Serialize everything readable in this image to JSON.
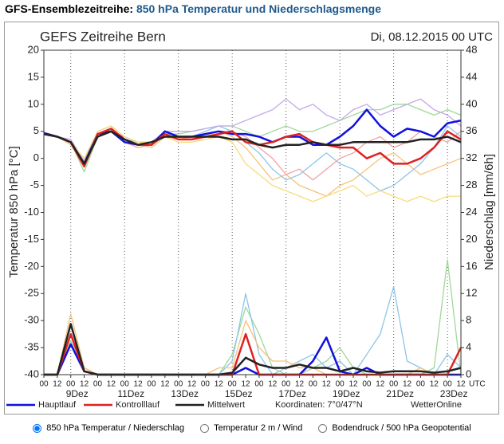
{
  "header": {
    "title": "GFS-Ensemblezeitreihe:",
    "subtitle": "850 hPa Temperatur und Niederschlagsmenge"
  },
  "chart_data": {
    "type": "line",
    "title": "GEFS Zeitreihe Bern",
    "date": "Di, 08.12.2015 00 UTC",
    "y_label": "Temperatur 850 hPa [°C]",
    "y2_label": "Niederschlag [mm/6h]",
    "coordinates": "Koordinaten: 7°0/47°N",
    "source": "WetterOnline",
    "x_unit": "UTC",
    "ylim": [
      -40,
      20
    ],
    "yticks": [
      20,
      15,
      10,
      5,
      0,
      -5,
      -10,
      -15,
      -20,
      -25,
      -30,
      -35,
      -40
    ],
    "y2lim": [
      0,
      48
    ],
    "y2ticks": [
      0,
      4,
      8,
      12,
      16,
      20,
      24,
      28,
      32,
      36,
      40,
      44,
      48
    ],
    "xlim": [
      0,
      372
    ],
    "xticks": [
      {
        "value": 0,
        "label": "00"
      },
      {
        "value": 12,
        "label": "12"
      },
      {
        "value": 24,
        "label": "00"
      },
      {
        "value": 36,
        "label": "12"
      },
      {
        "value": 48,
        "label": "00"
      },
      {
        "value": 60,
        "label": "12"
      },
      {
        "value": 72,
        "label": "00"
      },
      {
        "value": 84,
        "label": "12"
      },
      {
        "value": 96,
        "label": "00"
      },
      {
        "value": 108,
        "label": "12"
      },
      {
        "value": 120,
        "label": "00"
      },
      {
        "value": 132,
        "label": "12"
      },
      {
        "value": 144,
        "label": "00"
      },
      {
        "value": 156,
        "label": "12"
      },
      {
        "value": 168,
        "label": "00"
      },
      {
        "value": 180,
        "label": "12"
      },
      {
        "value": 192,
        "label": "00"
      },
      {
        "value": 204,
        "label": "12"
      },
      {
        "value": 216,
        "label": "00"
      },
      {
        "value": 228,
        "label": "12"
      },
      {
        "value": 240,
        "label": "00"
      },
      {
        "value": 252,
        "label": "12"
      },
      {
        "value": 264,
        "label": "00"
      },
      {
        "value": 276,
        "label": "12"
      },
      {
        "value": 288,
        "label": "00"
      },
      {
        "value": 300,
        "label": "12"
      },
      {
        "value": 312,
        "label": "00"
      },
      {
        "value": 324,
        "label": "12"
      },
      {
        "value": 336,
        "label": "00"
      },
      {
        "value": 348,
        "label": "12"
      },
      {
        "value": 360,
        "label": "00"
      },
      {
        "value": 372,
        "label": "12"
      }
    ],
    "date_ticks": [
      {
        "value": 24,
        "label": "9Dez"
      },
      {
        "value": 72,
        "label": "11Dez"
      },
      {
        "value": 120,
        "label": "13Dez"
      },
      {
        "value": 168,
        "label": "15Dez"
      },
      {
        "value": 216,
        "label": "17Dez"
      },
      {
        "value": 264,
        "label": "19Dez"
      },
      {
        "value": 312,
        "label": "21Dez"
      },
      {
        "value": 360,
        "label": "23Dez"
      }
    ],
    "grid": true,
    "x": [
      0,
      12,
      24,
      36,
      48,
      60,
      72,
      84,
      96,
      108,
      120,
      132,
      144,
      156,
      168,
      180,
      192,
      204,
      216,
      228,
      240,
      252,
      264,
      276,
      288,
      300,
      312,
      324,
      336,
      348,
      360,
      372
    ],
    "series": [
      {
        "color": "#f6c27a",
        "values": [
          4.5,
          4,
          2.5,
          -1.5,
          4,
          5,
          3,
          2.5,
          2,
          4,
          3.5,
          4,
          4.5,
          5,
          4,
          2,
          -1,
          -4,
          -3,
          -5,
          -6,
          -7,
          -5,
          -4,
          -2,
          0,
          1,
          -1,
          -3,
          -2,
          -1,
          0
        ]
      },
      {
        "color": "#9fd89a",
        "values": [
          4.5,
          4,
          3,
          -2.5,
          4,
          5.5,
          3.5,
          3,
          2.5,
          4.5,
          4.5,
          5,
          5.5,
          6,
          6,
          5,
          4,
          5,
          6,
          5,
          5,
          6,
          7,
          8,
          9,
          9,
          10,
          10,
          9,
          8,
          9,
          8
        ]
      },
      {
        "color": "#8ec5e8",
        "values": [
          4.5,
          4,
          3,
          -1,
          4.5,
          5,
          4,
          3,
          3,
          5,
          4,
          4,
          5,
          6,
          5,
          3,
          1,
          -2,
          -4,
          -3,
          -1,
          1,
          -1,
          -2,
          -4,
          -6,
          -5,
          -3,
          -1,
          2,
          6,
          4
        ]
      },
      {
        "color": "#c3a8e6",
        "values": [
          4.5,
          4,
          3.5,
          -0.5,
          5,
          6,
          4,
          3,
          3,
          5,
          5,
          5,
          5.5,
          6,
          6,
          7,
          8,
          9,
          11,
          9,
          10,
          8,
          7,
          9,
          10,
          8,
          9,
          10,
          11,
          9,
          8,
          6
        ]
      },
      {
        "color": "#f2a2a2",
        "values": [
          4.5,
          4,
          3,
          -1,
          4,
          5,
          3,
          2,
          2.5,
          4,
          4,
          4,
          4.5,
          5,
          5,
          4,
          2,
          0,
          -3,
          -2,
          -4,
          -2,
          0,
          1,
          3,
          4,
          2,
          3,
          5,
          4,
          3,
          5
        ]
      },
      {
        "color": "#f8dc7c",
        "values": [
          4.5,
          4,
          3,
          0,
          5,
          6,
          4,
          3,
          3,
          4,
          3,
          3,
          3.5,
          4,
          3,
          -1,
          -3,
          -5,
          -6,
          -7,
          -8,
          -7,
          -6,
          -5,
          -7,
          -6,
          -7,
          -8,
          -7,
          -8,
          -7,
          -7
        ]
      },
      {
        "color": "#9fd89a",
        "axis": "y2",
        "values": [
          0,
          0,
          5,
          1,
          0,
          0,
          0,
          0,
          0,
          0,
          0,
          0,
          0,
          0,
          3,
          10,
          6,
          1,
          0,
          0,
          1,
          2,
          4,
          1,
          0,
          0,
          0,
          0,
          0,
          1,
          17,
          0
        ]
      },
      {
        "color": "#8ec5e8",
        "axis": "y2",
        "values": [
          0,
          0,
          6,
          1,
          0,
          0,
          0,
          0,
          0,
          0,
          0,
          0,
          0,
          0,
          2,
          12,
          3,
          0,
          1,
          2,
          3,
          1,
          2,
          0,
          3,
          6,
          13,
          2,
          1,
          0,
          3,
          1
        ]
      },
      {
        "color": "#f6c27a",
        "axis": "y2",
        "values": [
          0,
          0,
          9,
          1,
          0,
          0,
          0,
          0,
          0,
          0,
          0,
          0,
          0,
          1,
          1,
          8,
          4,
          2,
          2,
          1,
          1,
          0,
          0,
          0,
          0,
          0,
          0,
          0,
          1,
          0,
          0,
          0
        ]
      },
      {
        "name": "Hauptlauf",
        "color": "#1010e0",
        "values": [
          4.7,
          4,
          3,
          -1,
          4.5,
          5,
          3,
          2.5,
          2.5,
          5,
          4,
          4,
          4.5,
          5,
          4.5,
          4.5,
          4,
          3,
          4,
          4,
          2.5,
          2.5,
          4,
          6,
          9,
          6,
          4,
          5.5,
          5,
          4,
          6.5,
          7
        ]
      },
      {
        "name": "Kontrolllauf",
        "color": "#e02020",
        "values": [
          4.5,
          4,
          3,
          -1.5,
          4.5,
          5.5,
          3.5,
          2.5,
          2.5,
          4.5,
          3.5,
          3.5,
          4,
          4.5,
          5,
          3,
          2.5,
          3,
          4,
          4.5,
          3,
          2.5,
          2,
          2,
          0,
          1,
          -1,
          -1,
          0,
          2,
          5,
          3.5
        ]
      },
      {
        "name": "Mittelwert",
        "color": "#222222",
        "values": [
          4.5,
          4,
          3,
          -1,
          4,
          5,
          3.5,
          2.5,
          3,
          4,
          4,
          4,
          4,
          4,
          3.5,
          3.5,
          2.5,
          2,
          2.5,
          2.5,
          3,
          2.5,
          2.5,
          3,
          3,
          3,
          3,
          3,
          3.5,
          3.5,
          4,
          3
        ]
      },
      {
        "color": "#1010e0",
        "axis": "y2",
        "values": [
          0,
          0,
          4.5,
          0.5,
          0,
          0,
          0,
          0,
          0,
          0,
          0,
          0,
          0,
          0,
          0,
          1,
          0,
          0,
          0,
          0,
          2,
          5.5,
          0.5,
          0,
          1,
          0,
          0,
          0,
          0,
          0,
          0,
          0
        ]
      },
      {
        "color": "#e02020",
        "axis": "y2",
        "values": [
          0,
          0,
          6,
          0.5,
          0,
          0,
          0,
          0,
          0,
          0,
          0,
          0,
          0,
          0,
          0,
          6,
          0,
          0,
          0,
          0,
          0,
          0,
          0,
          0,
          0,
          0,
          0,
          0,
          0,
          0,
          0,
          4
        ]
      },
      {
        "color": "#222222",
        "axis": "y2",
        "values": [
          0,
          0,
          7.5,
          0.5,
          0,
          0,
          0,
          0,
          0,
          0,
          0,
          0,
          0,
          0,
          0.3,
          2.5,
          1.5,
          1,
          1,
          1.5,
          1,
          1,
          0.5,
          1,
          0.5,
          0.3,
          0.5,
          0.5,
          0.5,
          0.3,
          0.5,
          1
        ]
      }
    ]
  },
  "controls": {
    "options": [
      "850 hPa Temperatur / Niederschlag",
      "Temperatur 2 m / Wind",
      "Bodendruck / 500 hPa Geopotential"
    ],
    "selected": 0
  }
}
